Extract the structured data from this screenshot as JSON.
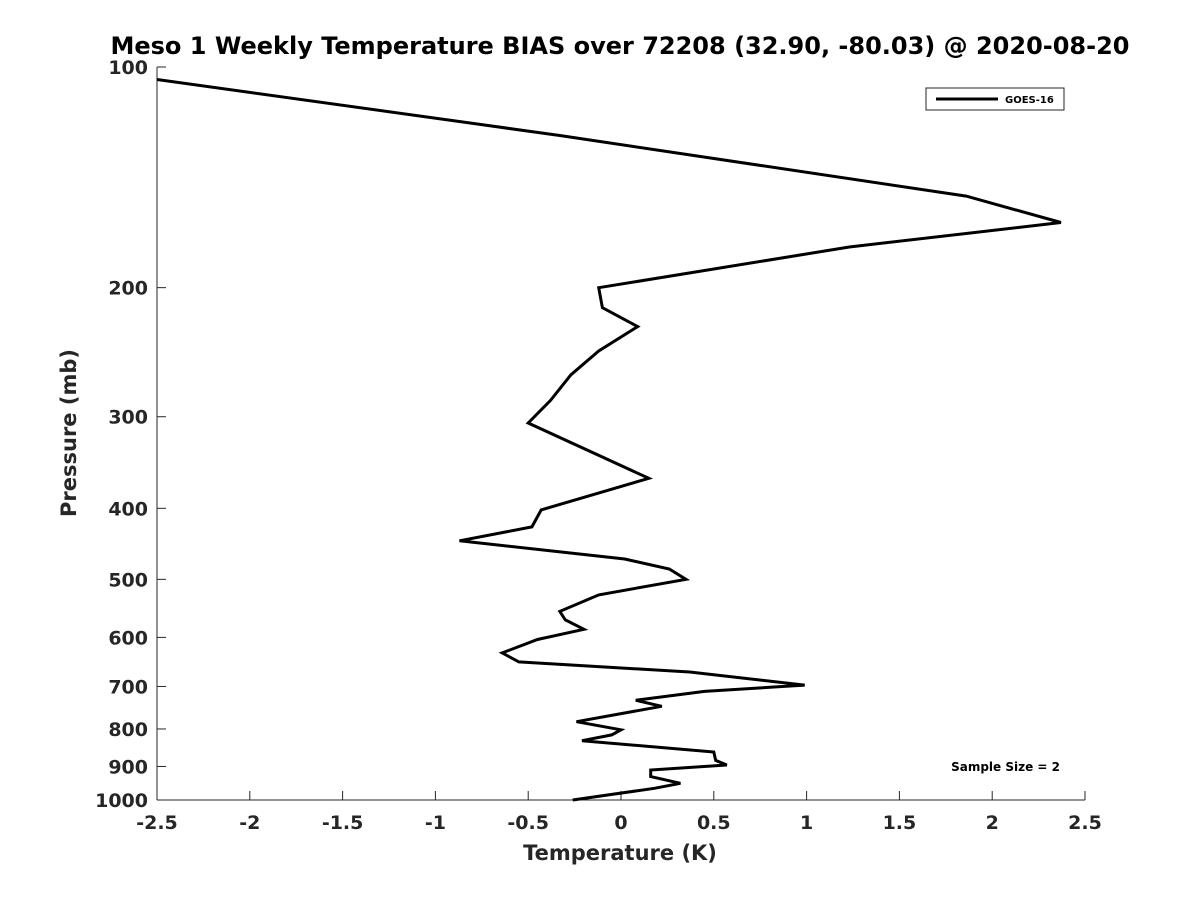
{
  "chart_data": {
    "type": "line",
    "title": "Meso 1 Weekly Temperature BIAS over 72208 (32.90, -80.03) @ 2020-08-20",
    "xlabel": "Temperature (K)",
    "ylabel": "Pressure (mb)",
    "xlim": [
      -2.5,
      2.5
    ],
    "ylim": [
      1000,
      100
    ],
    "y_scale": "log",
    "y_reversed": true,
    "grid": false,
    "legend_position": "top-right",
    "x_ticks": [
      "-2.5",
      "-2",
      "-1.5",
      "-1",
      "-0.5",
      "0",
      "0.5",
      "1",
      "1.5",
      "2",
      "2.5"
    ],
    "y_ticks": [
      "100",
      "200",
      "300",
      "400",
      "500",
      "600",
      "700",
      "800",
      "900",
      "1000"
    ],
    "series": [
      {
        "name": "GOES-16",
        "color": "#000000",
        "points": [
          {
            "x": -2.5,
            "y": 104
          },
          {
            "x": -0.33,
            "y": 124
          },
          {
            "x": 1.86,
            "y": 150
          },
          {
            "x": 2.37,
            "y": 163
          },
          {
            "x": 1.23,
            "y": 176
          },
          {
            "x": -0.12,
            "y": 200
          },
          {
            "x": -0.1,
            "y": 213
          },
          {
            "x": 0.09,
            "y": 226
          },
          {
            "x": -0.12,
            "y": 244
          },
          {
            "x": -0.27,
            "y": 263
          },
          {
            "x": -0.38,
            "y": 285
          },
          {
            "x": -0.5,
            "y": 306
          },
          {
            "x": 0.15,
            "y": 364
          },
          {
            "x": -0.43,
            "y": 402
          },
          {
            "x": -0.48,
            "y": 424
          },
          {
            "x": -0.87,
            "y": 443
          },
          {
            "x": 0.02,
            "y": 469
          },
          {
            "x": 0.26,
            "y": 484
          },
          {
            "x": 0.35,
            "y": 500
          },
          {
            "x": -0.12,
            "y": 525
          },
          {
            "x": -0.33,
            "y": 553
          },
          {
            "x": -0.3,
            "y": 568
          },
          {
            "x": -0.2,
            "y": 585
          },
          {
            "x": -0.45,
            "y": 604
          },
          {
            "x": -0.64,
            "y": 630
          },
          {
            "x": -0.55,
            "y": 648
          },
          {
            "x": 0.37,
            "y": 669
          },
          {
            "x": 0.99,
            "y": 697
          },
          {
            "x": 0.45,
            "y": 711
          },
          {
            "x": 0.08,
            "y": 731
          },
          {
            "x": 0.22,
            "y": 745
          },
          {
            "x": -0.24,
            "y": 782
          },
          {
            "x": 0.0,
            "y": 802
          },
          {
            "x": -0.05,
            "y": 815
          },
          {
            "x": -0.21,
            "y": 830
          },
          {
            "x": 0.5,
            "y": 860
          },
          {
            "x": 0.51,
            "y": 883
          },
          {
            "x": 0.57,
            "y": 896
          },
          {
            "x": 0.16,
            "y": 910
          },
          {
            "x": 0.16,
            "y": 929
          },
          {
            "x": 0.32,
            "y": 949
          },
          {
            "x": 0.18,
            "y": 964
          },
          {
            "x": -0.26,
            "y": 1000
          }
        ]
      }
    ],
    "annotations": [
      {
        "text": "Sample Size = 2"
      }
    ]
  }
}
